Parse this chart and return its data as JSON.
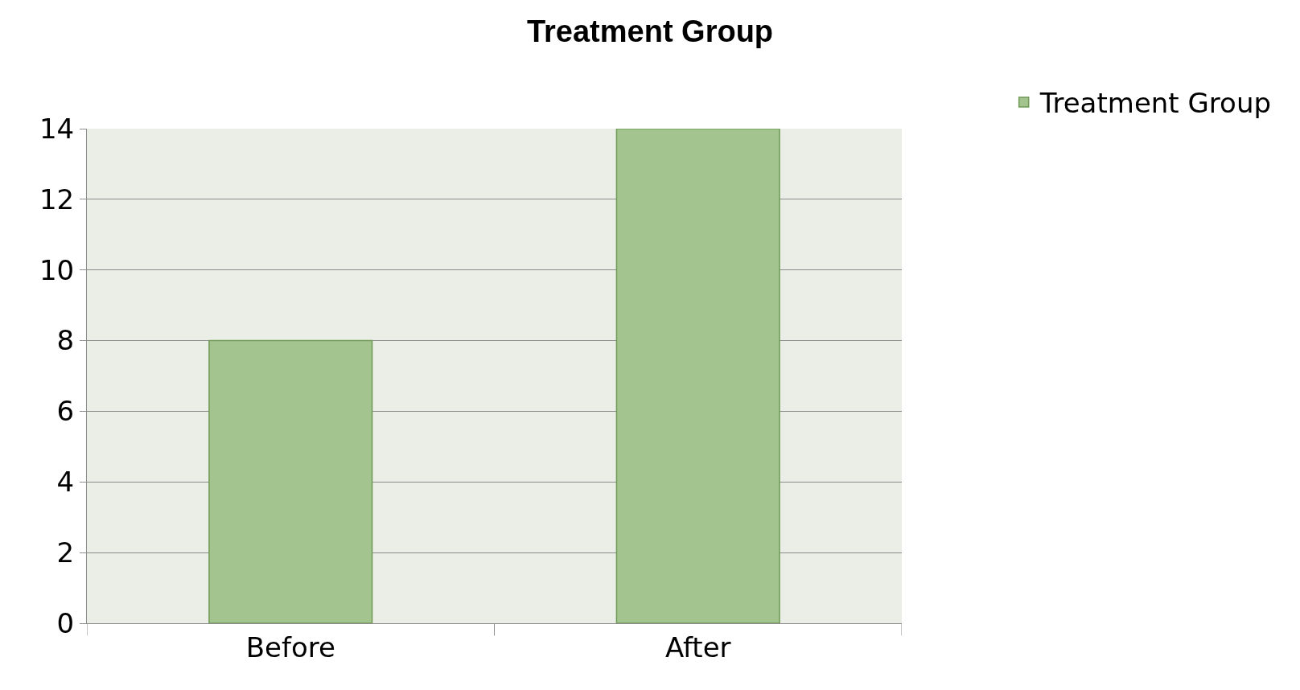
{
  "chart_data": {
    "type": "bar",
    "title": "Treatment Group",
    "categories": [
      "Before",
      "After"
    ],
    "series": [
      {
        "name": "Treatment Group",
        "color": "#a3c48f",
        "values": [
          8,
          14
        ]
      }
    ],
    "ylim": [
      0,
      14
    ],
    "yticks": [
      0,
      2,
      4,
      6,
      8,
      10,
      12,
      14
    ],
    "grid": "y",
    "legend": "top right"
  }
}
